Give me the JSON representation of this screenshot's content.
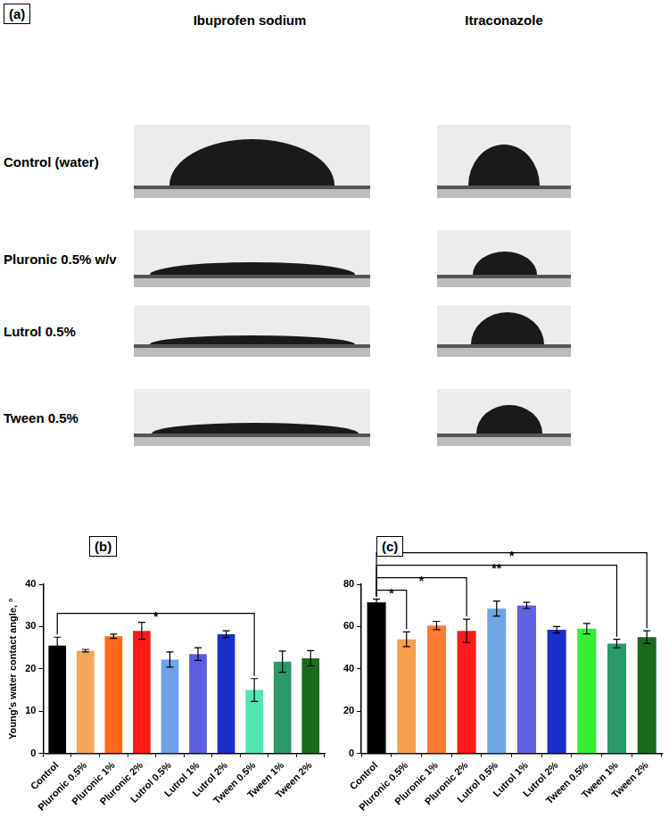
{
  "panel_a": {
    "label": "(a)",
    "columns": [
      "Ibuprofen sodium",
      "Itraconazole"
    ],
    "rows": [
      "Control (water)",
      "Pluronic 0.5% w/v",
      "Lutrol 0.5%",
      "Tween 0.5%"
    ]
  },
  "chart_data": [
    {
      "type": "bar",
      "title": "(b)",
      "y_label": "Young's water contact angle, °",
      "categories": [
        "Control",
        "Pluronic 0.5%",
        "Pluronic 1%",
        "Pluronic 2%",
        "Lutrol 0.5%",
        "Lutrol 1%",
        "Lutrol 2%",
        "Tween 0.5%",
        "Tween 1%",
        "Tween 2%"
      ],
      "values": [
        25.5,
        24.3,
        27.7,
        29,
        22.2,
        23.5,
        28.2,
        15,
        21.7,
        22.5
      ],
      "errors": [
        2,
        0.3,
        0.5,
        2,
        1.8,
        1.5,
        0.8,
        2.7,
        2.5,
        1.8
      ],
      "colors": [
        "#000000",
        "#f5a55a",
        "#ff6a1a",
        "#ff1a1a",
        "#6ca2e8",
        "#5a5ee0",
        "#1a2ec9",
        "#4de8b0",
        "#2a9a6a",
        "#1a6b1a"
      ],
      "ylim": [
        0,
        40
      ],
      "yticks": [
        0,
        10,
        20,
        30,
        40
      ],
      "grid": false,
      "annotations": [
        {
          "text": "*",
          "from": "Control",
          "to": "Tween 0.5%"
        }
      ]
    },
    {
      "type": "bar",
      "title": "(c)",
      "categories": [
        "Control",
        "Pluronic 0.5%",
        "Pluronic 1%",
        "Pluronic 2%",
        "Lutrol 0.5%",
        "Lutrol 1%",
        "Lutrol 2%",
        "Tween 0.5%",
        "Tween 1%",
        "Tween 2%"
      ],
      "values": [
        71.5,
        54,
        60.5,
        58,
        68.5,
        70,
        58.5,
        59,
        52,
        55
      ],
      "errors": [
        1.5,
        3.5,
        2,
        5.5,
        3.5,
        1.5,
        1.5,
        2.5,
        2,
        3
      ],
      "colors": [
        "#000000",
        "#f6a04d",
        "#ff7a33",
        "#ff1a1a",
        "#6ea6e6",
        "#6060e0",
        "#1a2ecc",
        "#33ee33",
        "#2a9a6a",
        "#1a6b1a"
      ],
      "ylim": [
        0,
        80
      ],
      "yticks": [
        0,
        20,
        40,
        60,
        80
      ],
      "grid": false,
      "annotations": [
        {
          "text": "*",
          "from": "Control",
          "to": "Pluronic 0.5%"
        },
        {
          "text": "*",
          "from": "Control",
          "to": "Pluronic 2%"
        },
        {
          "text": "**",
          "from": "Control",
          "to": "Tween 1%"
        },
        {
          "text": "*",
          "from": "Control",
          "to": "Tween 2%"
        }
      ]
    }
  ]
}
